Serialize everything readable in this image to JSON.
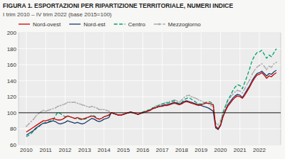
{
  "chart_data": {
    "type": "line",
    "title": "FIGURA 1. ESPORTAZIONI PER RIPARTIZIONE TERRITORIALE, NUMERI INDICE",
    "subtitle": "I trim 2010 – IV trim 2022 (base 2015=100)",
    "x": [
      2010,
      2010.125,
      2010.25,
      2010.375,
      2010.5,
      2010.625,
      2010.75,
      2010.875,
      2011,
      2011.125,
      2011.25,
      2011.375,
      2011.5,
      2011.625,
      2011.75,
      2011.875,
      2012,
      2012.125,
      2012.25,
      2012.375,
      2012.5,
      2012.625,
      2012.75,
      2012.875,
      2013,
      2013.125,
      2013.25,
      2013.375,
      2013.5,
      2013.625,
      2013.75,
      2013.875,
      2014,
      2014.125,
      2014.25,
      2014.375,
      2014.5,
      2014.625,
      2014.75,
      2014.875,
      2015,
      2015.125,
      2015.25,
      2015.375,
      2015.5,
      2015.625,
      2015.75,
      2015.875,
      2016,
      2016.125,
      2016.25,
      2016.375,
      2016.5,
      2016.625,
      2016.75,
      2016.875,
      2017,
      2017.125,
      2017.25,
      2017.375,
      2017.5,
      2017.625,
      2017.75,
      2017.875,
      2018,
      2018.125,
      2018.25,
      2018.375,
      2018.5,
      2018.625,
      2018.75,
      2018.875,
      2019,
      2019.125,
      2019.25,
      2019.375,
      2019.5,
      2019.625,
      2019.75,
      2019.875,
      2020,
      2020.125,
      2020.25,
      2020.375,
      2020.5,
      2020.625,
      2020.75,
      2020.875,
      2021,
      2021.125,
      2021.25,
      2021.375,
      2021.5,
      2021.625,
      2021.75,
      2021.875,
      2022,
      2022.125,
      2022.25,
      2022.375,
      2022.5,
      2022.625,
      2022.75,
      2022.875
    ],
    "series": [
      {
        "name": "Nord-ovest",
        "color": "#cc0000",
        "line_style": "solid",
        "values": [
          76,
          78,
          80,
          82,
          84,
          86,
          88,
          90,
          90,
          91,
          92,
          93,
          92,
          91,
          91,
          92,
          94,
          96,
          95,
          94,
          93,
          94,
          93,
          92,
          93,
          94,
          95,
          96,
          95,
          93,
          92,
          93,
          95,
          96,
          97,
          100,
          99,
          98,
          97,
          97,
          98,
          99,
          100,
          101,
          100,
          99,
          98,
          99,
          100,
          101,
          102,
          103,
          105,
          106,
          107,
          108,
          108,
          109,
          109,
          110,
          111,
          112,
          111,
          110,
          111,
          113,
          114,
          113,
          112,
          111,
          110,
          109,
          110,
          111,
          112,
          112,
          111,
          110,
          83,
          80,
          84,
          95,
          102,
          108,
          112,
          116,
          119,
          121,
          120,
          118,
          122,
          127,
          132,
          138,
          143,
          147,
          148,
          150,
          147,
          143,
          146,
          145,
          148,
          150
        ]
      },
      {
        "name": "Nord-est",
        "color": "#1a3c6e",
        "line_style": "solid",
        "values": [
          72,
          74,
          76,
          78,
          81,
          83,
          85,
          87,
          87,
          88,
          89,
          90,
          89,
          87,
          86,
          87,
          88,
          90,
          89,
          88,
          87,
          88,
          87,
          86,
          87,
          89,
          91,
          93,
          92,
          90,
          89,
          90,
          92,
          93,
          94,
          100,
          99,
          98,
          97,
          97,
          98,
          99,
          100,
          101,
          100,
          99,
          98,
          99,
          100,
          101,
          102,
          103,
          105,
          106,
          107,
          108,
          109,
          110,
          110,
          111,
          112,
          113,
          112,
          111,
          112,
          114,
          115,
          114,
          113,
          112,
          111,
          110,
          109,
          108,
          107,
          106,
          104,
          102,
          81,
          79,
          84,
          95,
          103,
          110,
          114,
          118,
          121,
          123,
          122,
          119,
          124,
          129,
          134,
          140,
          145,
          149,
          150,
          152,
          149,
          146,
          149,
          148,
          151,
          153
        ]
      },
      {
        "name": "Centro",
        "color": "#00a06e",
        "line_style": "dashed",
        "values": [
          70,
          72,
          74,
          77,
          80,
          82,
          85,
          87,
          88,
          89,
          90,
          91,
          96,
          101,
          99,
          97,
          95,
          96,
          95,
          94,
          93,
          93,
          92,
          91,
          92,
          93,
          95,
          97,
          96,
          94,
          92,
          93,
          95,
          96,
          97,
          100,
          99,
          98,
          97,
          97,
          98,
          99,
          100,
          101,
          100,
          99,
          98,
          99,
          101,
          102,
          103,
          104,
          106,
          107,
          108,
          110,
          111,
          112,
          112,
          113,
          114,
          115,
          113,
          111,
          113,
          116,
          118,
          119,
          117,
          115,
          113,
          111,
          111,
          112,
          113,
          114,
          113,
          111,
          83,
          80,
          86,
          99,
          108,
          116,
          121,
          127,
          132,
          135,
          134,
          130,
          138,
          146,
          155,
          165,
          171,
          175,
          176,
          178,
          173,
          168,
          172,
          170,
          175,
          180
        ]
      },
      {
        "name": "Mezzogiorno",
        "color": "#aaaaaa",
        "line_style": "dashdot",
        "marker": "circle",
        "values": [
          83,
          86,
          89,
          92,
          96,
          99,
          101,
          103,
          102,
          103,
          104,
          105,
          106,
          108,
          109,
          110,
          111,
          113,
          113,
          113,
          113,
          112,
          111,
          110,
          109,
          108,
          107,
          108,
          107,
          106,
          104,
          104,
          104,
          103,
          102,
          100,
          99,
          98,
          97,
          97,
          98,
          99,
          100,
          101,
          100,
          99,
          98,
          99,
          101,
          102,
          103,
          104,
          106,
          108,
          109,
          110,
          111,
          112,
          113,
          114,
          115,
          116,
          115,
          113,
          116,
          119,
          121,
          122,
          120,
          119,
          118,
          116,
          115,
          113,
          112,
          111,
          109,
          108,
          87,
          85,
          90,
          101,
          108,
          115,
          119,
          123,
          126,
          128,
          127,
          125,
          130,
          136,
          141,
          148,
          153,
          157,
          159,
          161,
          158,
          154,
          158,
          157,
          161,
          163
        ]
      }
    ],
    "reference_line": 100,
    "xlim": [
      2009.6,
      2023.1
    ],
    "xticks": [
      2010,
      2011,
      2012,
      2013,
      2014,
      2015,
      2016,
      2017,
      2018,
      2019,
      2020,
      2021,
      2022
    ],
    "ylim": [
      60,
      200
    ],
    "yticks": [
      60,
      80,
      100,
      120,
      140,
      160,
      180,
      200
    ],
    "grid": true,
    "legend": "top"
  }
}
